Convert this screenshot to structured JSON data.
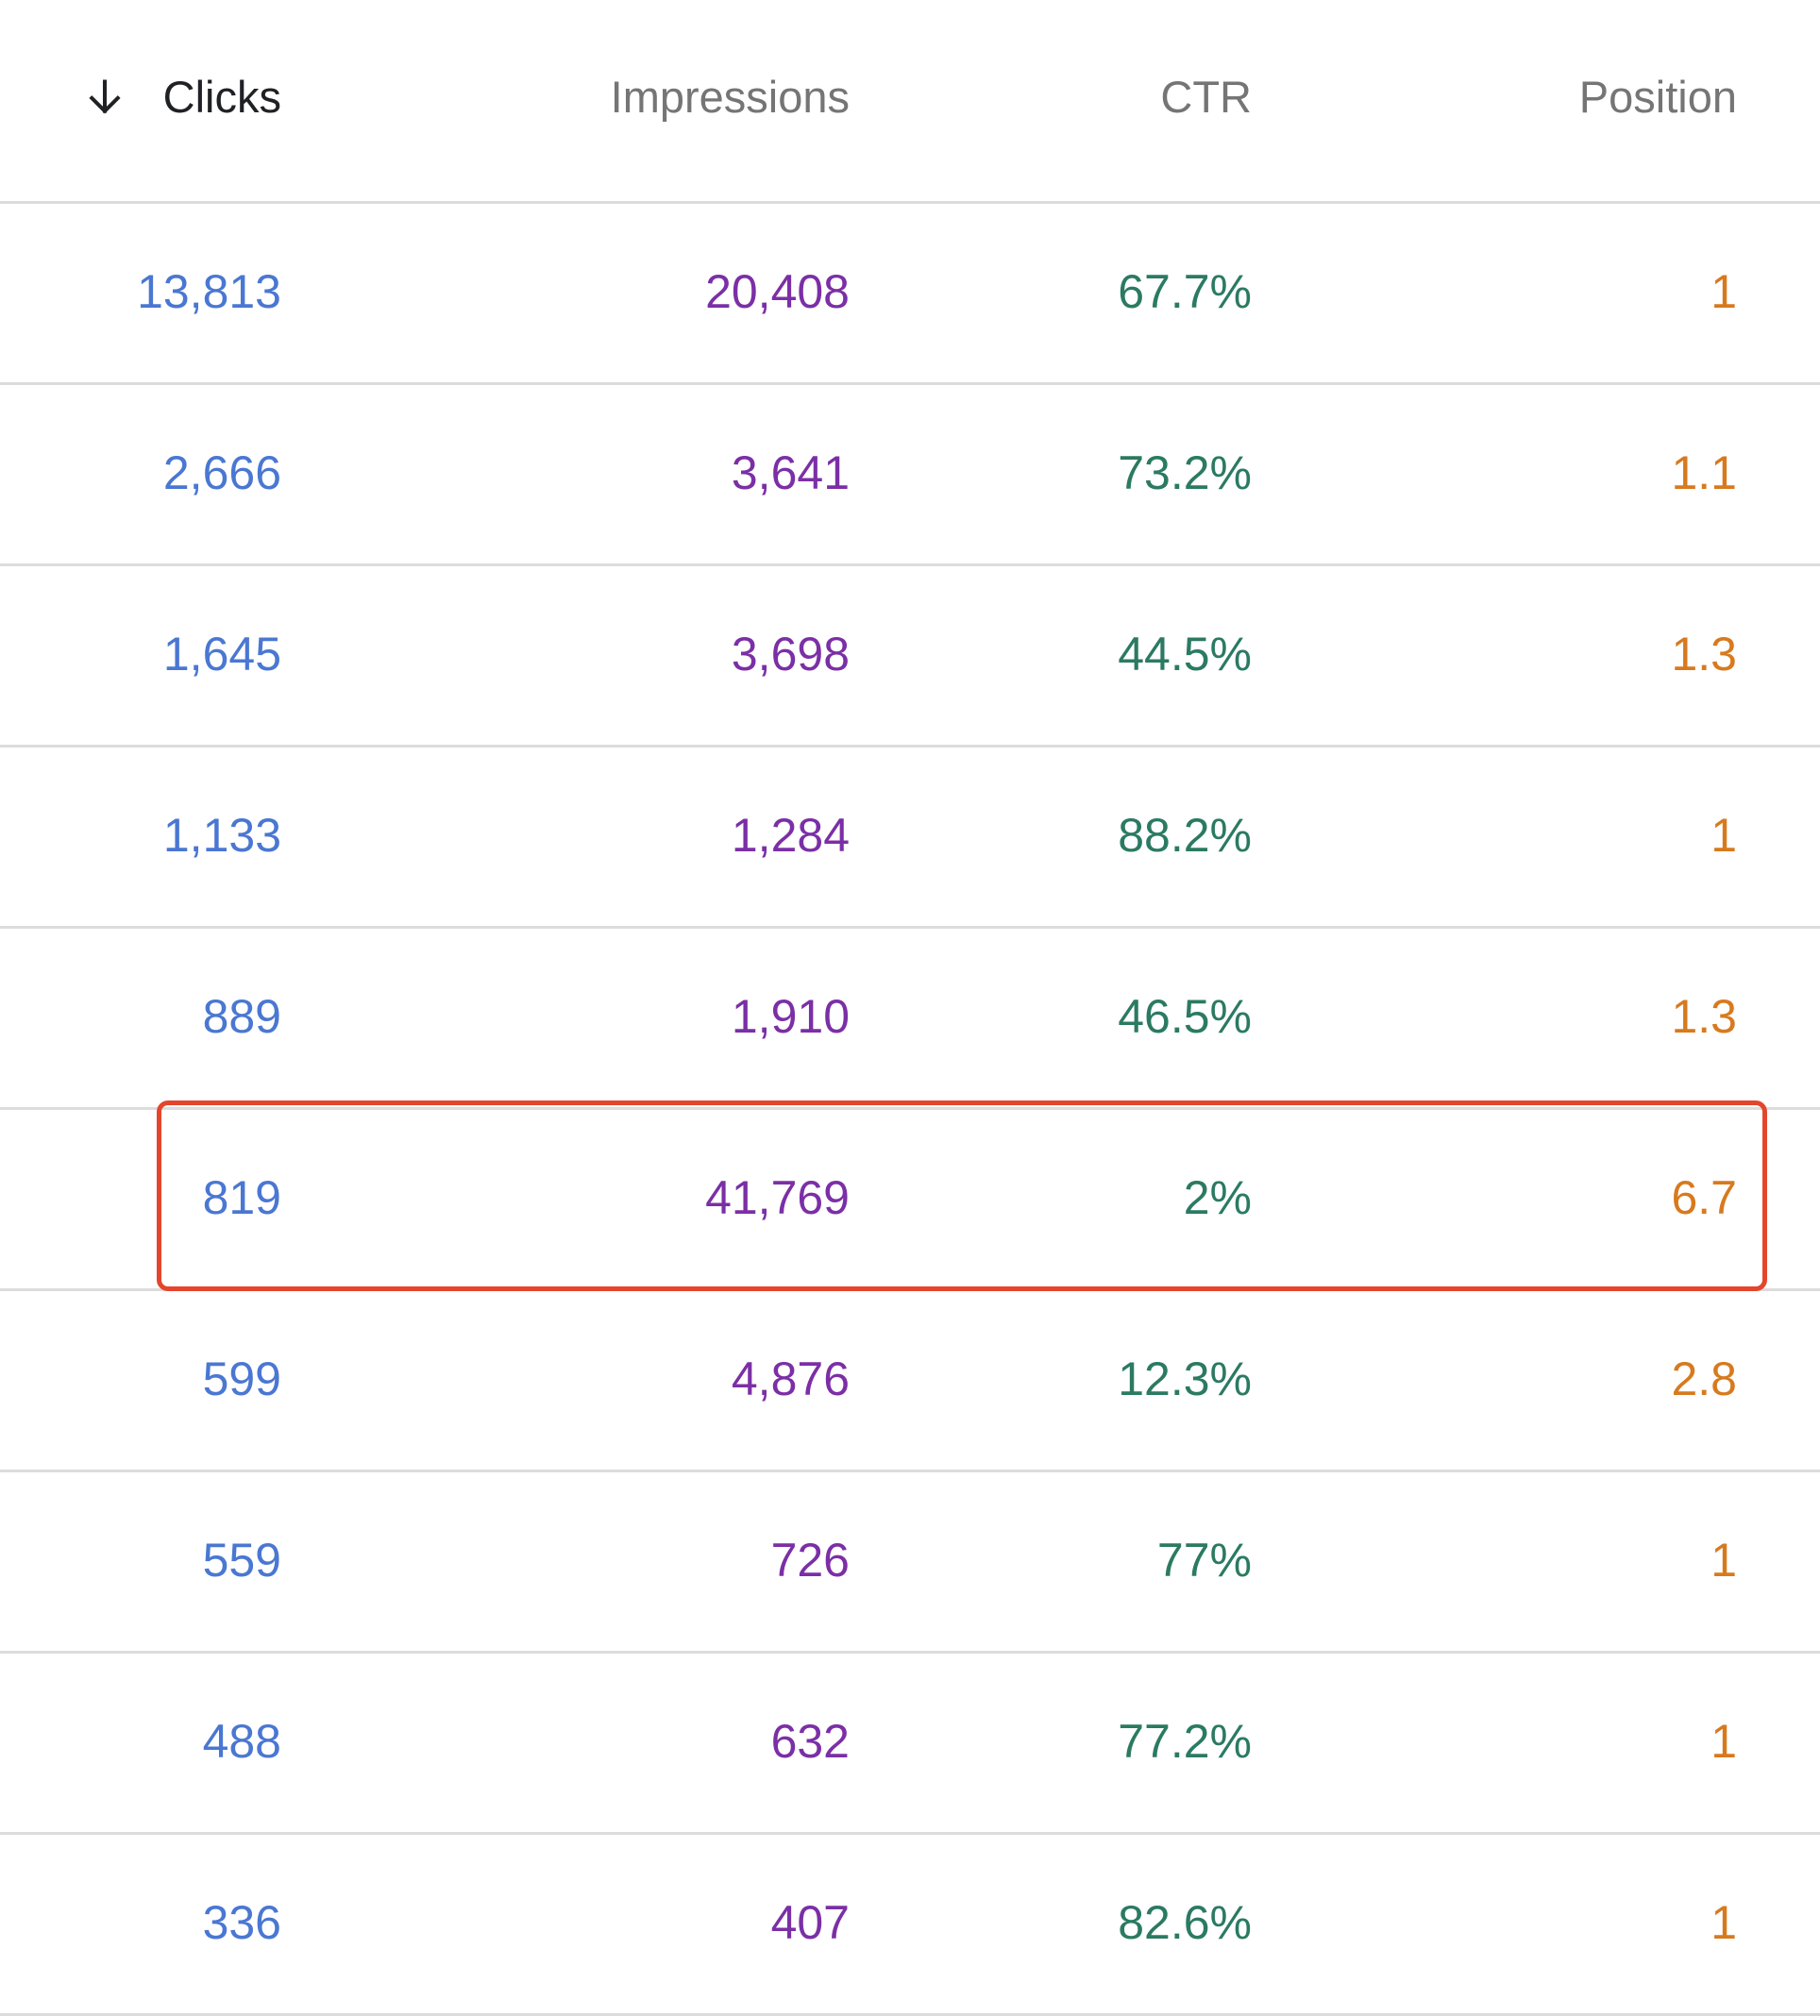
{
  "table": {
    "headers": {
      "clicks": "Clicks",
      "impressions": "Impressions",
      "ctr": "CTR",
      "position": "Position"
    },
    "sort": {
      "column": "clicks",
      "direction": "descending",
      "icon": "arrow-down-icon"
    },
    "rows": [
      {
        "clicks": "13,813",
        "impressions": "20,408",
        "ctr": "67.7%",
        "position": "1"
      },
      {
        "clicks": "2,666",
        "impressions": "3,641",
        "ctr": "73.2%",
        "position": "1.1"
      },
      {
        "clicks": "1,645",
        "impressions": "3,698",
        "ctr": "44.5%",
        "position": "1.3"
      },
      {
        "clicks": "1,133",
        "impressions": "1,284",
        "ctr": "88.2%",
        "position": "1"
      },
      {
        "clicks": "889",
        "impressions": "1,910",
        "ctr": "46.5%",
        "position": "1.3"
      },
      {
        "clicks": "819",
        "impressions": "41,769",
        "ctr": "2%",
        "position": "6.7"
      },
      {
        "clicks": "599",
        "impressions": "4,876",
        "ctr": "12.3%",
        "position": "2.8"
      },
      {
        "clicks": "559",
        "impressions": "726",
        "ctr": "77%",
        "position": "1"
      },
      {
        "clicks": "488",
        "impressions": "632",
        "ctr": "77.2%",
        "position": "1"
      },
      {
        "clicks": "336",
        "impressions": "407",
        "ctr": "82.6%",
        "position": "1"
      }
    ],
    "highlighted_row": 5
  },
  "colors": {
    "clicks": "#4a77d2",
    "impressions": "#7b2fa6",
    "ctr": "#2b7a62",
    "position": "#d77a1e",
    "highlight_border": "#e4452c",
    "header_text": "#757575",
    "sorted_header_text": "#202124",
    "divider": "#dcdcdc"
  }
}
